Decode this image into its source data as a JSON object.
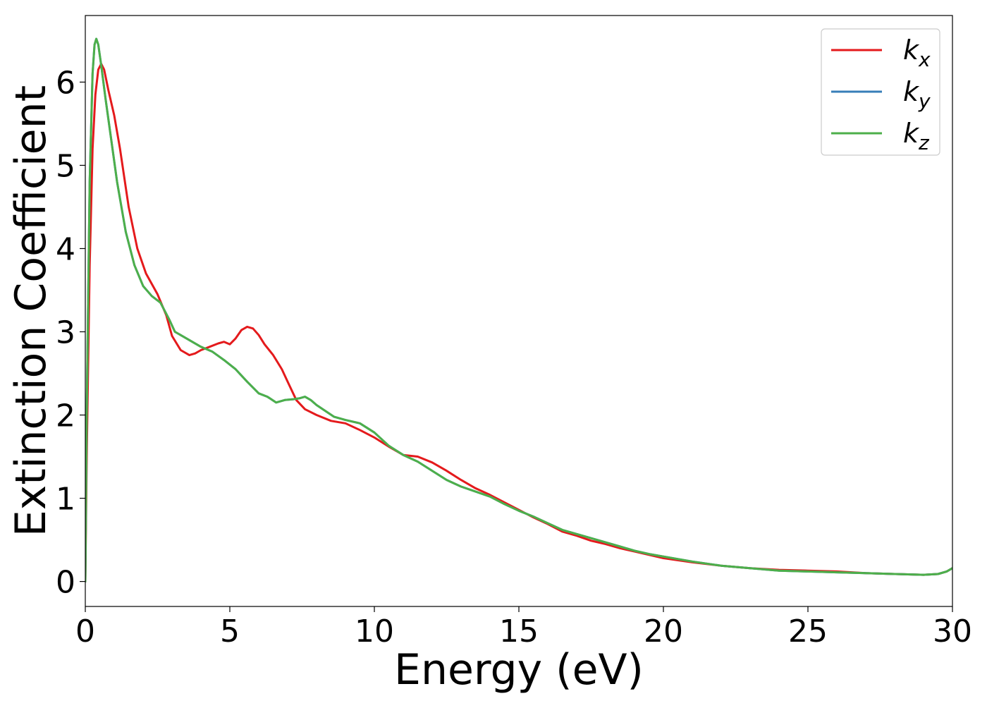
{
  "chart_data": {
    "type": "line",
    "title": "",
    "xlabel": "Energy (eV)",
    "ylabel": "Extinction Coefficient",
    "xlim": [
      0,
      30
    ],
    "ylim": [
      -0.3,
      6.8
    ],
    "xticks": [
      0,
      5,
      10,
      15,
      20,
      25,
      30
    ],
    "xtick_labels": [
      "0",
      "5",
      "10",
      "15",
      "20",
      "25",
      "30"
    ],
    "yticks": [
      0,
      1,
      2,
      3,
      4,
      5,
      6
    ],
    "ytick_labels": [
      "0",
      "1",
      "2",
      "3",
      "4",
      "5",
      "6"
    ],
    "grid": false,
    "legend_position": "top-right",
    "series": [
      {
        "key": "kx",
        "name": "k",
        "subscript": "x",
        "color": "#e41a1c",
        "x": [
          0,
          0.05,
          0.15,
          0.25,
          0.35,
          0.45,
          0.55,
          0.65,
          0.8,
          1.0,
          1.2,
          1.5,
          1.8,
          2.1,
          2.5,
          2.8,
          3.0,
          3.3,
          3.6,
          3.8,
          4.0,
          4.3,
          4.6,
          4.8,
          5.0,
          5.2,
          5.4,
          5.6,
          5.8,
          6.0,
          6.2,
          6.5,
          6.8,
          7.0,
          7.3,
          7.6,
          8.0,
          8.5,
          9.0,
          9.5,
          10.0,
          10.5,
          11.0,
          11.5,
          12.0,
          12.5,
          13.0,
          13.5,
          14.0,
          14.5,
          15.0,
          15.5,
          16.0,
          16.5,
          17.0,
          17.5,
          18.0,
          18.5,
          19.0,
          19.5,
          20.0,
          21.0,
          22.0,
          23.0,
          24.0,
          25.0,
          26.0,
          27.0,
          28.0,
          29.0,
          29.5,
          29.8,
          30.0
        ],
        "y": [
          0,
          1.5,
          3.8,
          5.2,
          5.85,
          6.15,
          6.22,
          6.15,
          5.9,
          5.6,
          5.2,
          4.5,
          4.0,
          3.7,
          3.45,
          3.2,
          2.95,
          2.78,
          2.72,
          2.74,
          2.78,
          2.82,
          2.86,
          2.88,
          2.85,
          2.92,
          3.02,
          3.06,
          3.04,
          2.96,
          2.85,
          2.72,
          2.55,
          2.4,
          2.18,
          2.07,
          2.0,
          1.93,
          1.9,
          1.82,
          1.73,
          1.62,
          1.52,
          1.5,
          1.43,
          1.33,
          1.22,
          1.12,
          1.04,
          0.95,
          0.86,
          0.77,
          0.69,
          0.6,
          0.55,
          0.49,
          0.45,
          0.4,
          0.36,
          0.32,
          0.28,
          0.23,
          0.19,
          0.16,
          0.14,
          0.13,
          0.12,
          0.1,
          0.09,
          0.08,
          0.09,
          0.12,
          0.16
        ]
      },
      {
        "key": "ky",
        "name": "k",
        "subscript": "y",
        "color": "#377eb8",
        "x": [
          0,
          0.05,
          0.15,
          0.25,
          0.32,
          0.38,
          0.45,
          0.55,
          0.7,
          0.9,
          1.1,
          1.4,
          1.7,
          2.0,
          2.3,
          2.6,
          2.9,
          3.1,
          3.3,
          3.6,
          4.0,
          4.4,
          4.8,
          5.2,
          5.6,
          6.0,
          6.3,
          6.6,
          6.9,
          7.2,
          7.4,
          7.6,
          7.8,
          8.0,
          8.3,
          8.6,
          9.0,
          9.5,
          10.0,
          10.5,
          11.0,
          11.5,
          12.0,
          12.5,
          13.0,
          13.5,
          14.0,
          14.5,
          15.0,
          15.5,
          16.0,
          16.5,
          17.0,
          17.5,
          18.0,
          18.5,
          19.0,
          19.5,
          20.0,
          21.0,
          22.0,
          23.0,
          24.0,
          25.0,
          26.0,
          27.0,
          28.0,
          29.0,
          29.5,
          29.8,
          30.0
        ],
        "y": [
          0,
          2.0,
          4.8,
          6.1,
          6.45,
          6.52,
          6.45,
          6.2,
          5.8,
          5.3,
          4.8,
          4.2,
          3.8,
          3.55,
          3.43,
          3.35,
          3.15,
          3.0,
          2.96,
          2.9,
          2.82,
          2.76,
          2.66,
          2.55,
          2.4,
          2.26,
          2.22,
          2.15,
          2.18,
          2.19,
          2.2,
          2.22,
          2.18,
          2.12,
          2.05,
          1.98,
          1.94,
          1.9,
          1.79,
          1.63,
          1.52,
          1.44,
          1.33,
          1.22,
          1.14,
          1.08,
          1.02,
          0.93,
          0.85,
          0.78,
          0.7,
          0.62,
          0.57,
          0.52,
          0.47,
          0.42,
          0.37,
          0.33,
          0.3,
          0.24,
          0.19,
          0.16,
          0.13,
          0.12,
          0.11,
          0.1,
          0.09,
          0.08,
          0.09,
          0.12,
          0.16
        ]
      },
      {
        "key": "kz",
        "name": "k",
        "subscript": "z",
        "color": "#4daf4a",
        "x": [
          0,
          0.05,
          0.15,
          0.25,
          0.32,
          0.38,
          0.45,
          0.55,
          0.7,
          0.9,
          1.1,
          1.4,
          1.7,
          2.0,
          2.3,
          2.6,
          2.9,
          3.1,
          3.3,
          3.6,
          4.0,
          4.4,
          4.8,
          5.2,
          5.6,
          6.0,
          6.3,
          6.6,
          6.9,
          7.2,
          7.4,
          7.6,
          7.8,
          8.0,
          8.3,
          8.6,
          9.0,
          9.5,
          10.0,
          10.5,
          11.0,
          11.5,
          12.0,
          12.5,
          13.0,
          13.5,
          14.0,
          14.5,
          15.0,
          15.5,
          16.0,
          16.5,
          17.0,
          17.5,
          18.0,
          18.5,
          19.0,
          19.5,
          20.0,
          21.0,
          22.0,
          23.0,
          24.0,
          25.0,
          26.0,
          27.0,
          28.0,
          29.0,
          29.5,
          29.8,
          30.0
        ],
        "y": [
          0,
          2.0,
          4.8,
          6.1,
          6.45,
          6.52,
          6.45,
          6.2,
          5.8,
          5.3,
          4.8,
          4.2,
          3.8,
          3.55,
          3.43,
          3.35,
          3.15,
          3.0,
          2.96,
          2.9,
          2.82,
          2.76,
          2.66,
          2.55,
          2.4,
          2.26,
          2.22,
          2.15,
          2.18,
          2.19,
          2.2,
          2.22,
          2.18,
          2.12,
          2.05,
          1.98,
          1.94,
          1.9,
          1.79,
          1.63,
          1.52,
          1.44,
          1.33,
          1.22,
          1.14,
          1.08,
          1.02,
          0.93,
          0.85,
          0.78,
          0.7,
          0.62,
          0.57,
          0.52,
          0.47,
          0.42,
          0.37,
          0.33,
          0.3,
          0.24,
          0.19,
          0.16,
          0.13,
          0.12,
          0.11,
          0.1,
          0.09,
          0.08,
          0.09,
          0.12,
          0.16
        ]
      }
    ]
  }
}
